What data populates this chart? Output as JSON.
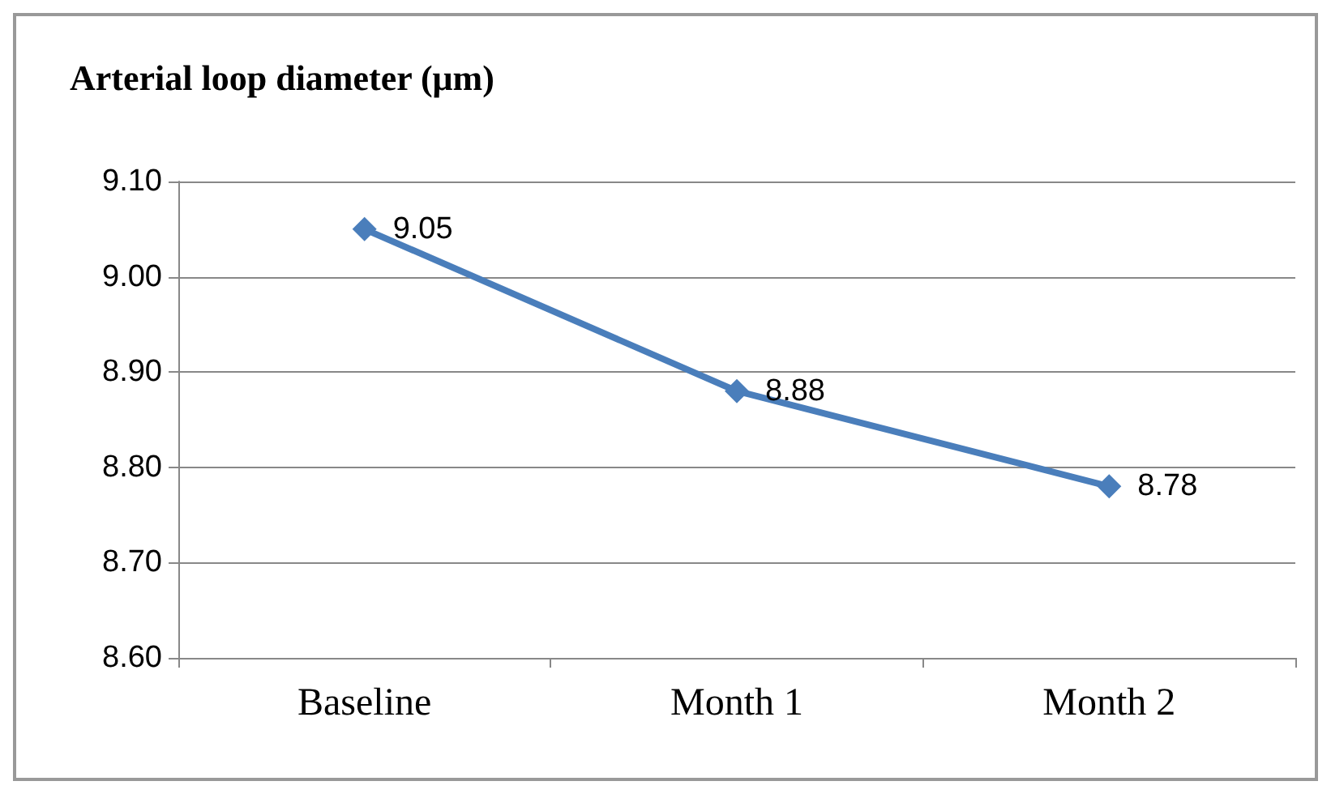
{
  "chart_data": {
    "type": "line",
    "title": "Arterial loop diameter (μm)",
    "categories": [
      "Baseline",
      "Month 1",
      "Month 2"
    ],
    "series": [
      {
        "color": "#4a7ebb",
        "values": [
          9.05,
          8.88,
          8.78
        ]
      }
    ],
    "ylim": [
      8.6,
      9.1
    ],
    "yticks": [
      {
        "value": 8.6,
        "label": "8.60"
      },
      {
        "value": 8.7,
        "label": "8.70"
      },
      {
        "value": 8.8,
        "label": "8.80"
      },
      {
        "value": 8.9,
        "label": "8.90"
      },
      {
        "value": 9.0,
        "label": "9.00"
      },
      {
        "value": 9.1,
        "label": "9.10"
      }
    ],
    "grid": "y",
    "marker": "diamond",
    "line_style": "solid",
    "data_labels": true
  }
}
